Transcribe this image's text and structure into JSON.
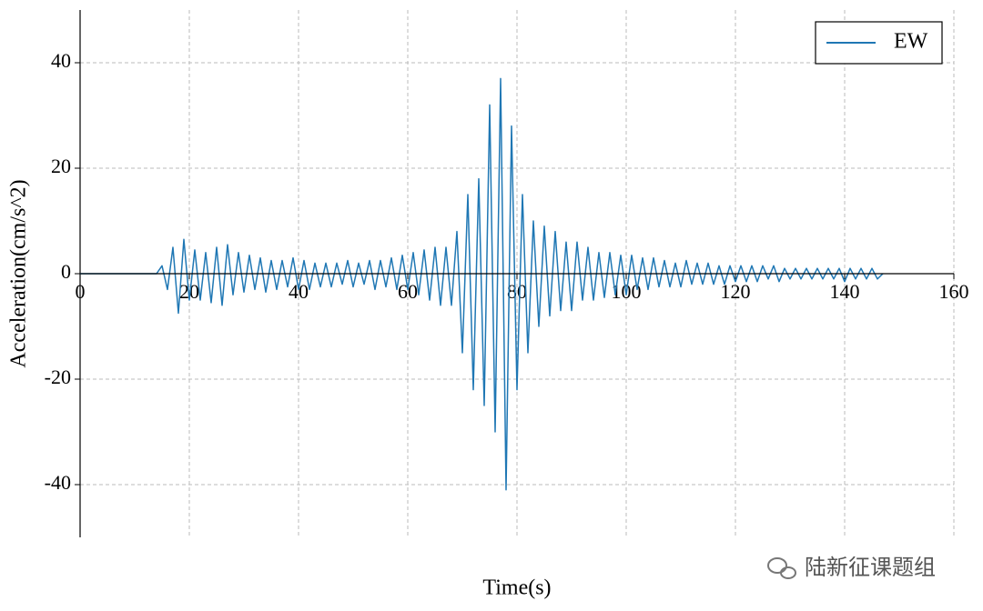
{
  "chart_data": {
    "type": "line",
    "x_label": "Time(s)",
    "y_label": "Acceleration(cm/s^2)",
    "watermark": "陆新征课题组",
    "legend": "upper right",
    "grid": true,
    "xlim": [
      0,
      160
    ],
    "xticks": [
      0,
      20,
      40,
      60,
      80,
      100,
      120,
      140,
      160
    ],
    "ylim": [
      -50,
      50
    ],
    "yticks": [
      -40,
      -20,
      0,
      20,
      40
    ],
    "x": [
      0,
      1,
      2,
      3,
      4,
      5,
      6,
      7,
      8,
      9,
      10,
      11,
      12,
      13,
      14,
      15,
      16,
      17,
      18,
      19,
      20,
      21,
      22,
      23,
      24,
      25,
      26,
      27,
      28,
      29,
      30,
      31,
      32,
      33,
      34,
      35,
      36,
      37,
      38,
      39,
      40,
      41,
      42,
      43,
      44,
      45,
      46,
      47,
      48,
      49,
      50,
      51,
      52,
      53,
      54,
      55,
      56,
      57,
      58,
      59,
      60,
      61,
      62,
      63,
      64,
      65,
      66,
      67,
      68,
      69,
      70,
      71,
      72,
      73,
      74,
      75,
      76,
      77,
      78,
      79,
      80,
      81,
      82,
      83,
      84,
      85,
      86,
      87,
      88,
      89,
      90,
      91,
      92,
      93,
      94,
      95,
      96,
      97,
      98,
      99,
      100,
      101,
      102,
      103,
      104,
      105,
      106,
      107,
      108,
      109,
      110,
      111,
      112,
      113,
      114,
      115,
      116,
      117,
      118,
      119,
      120,
      121,
      122,
      123,
      124,
      125,
      126,
      127,
      128,
      129,
      130,
      131,
      132,
      133,
      134,
      135,
      136,
      137,
      138,
      139,
      140,
      141,
      142,
      143,
      144,
      145,
      146,
      147
    ],
    "series": [
      {
        "name": "EW",
        "color": "#1f77b4",
        "values": [
          0,
          0,
          0,
          0,
          0,
          0,
          0,
          0,
          0,
          0,
          0,
          0,
          0,
          0,
          0,
          1.5,
          -3,
          5,
          -7.5,
          6.5,
          -5,
          4.5,
          -5,
          4,
          -5.5,
          5,
          -6,
          5.5,
          -4,
          4,
          -3.5,
          3.5,
          -3,
          3,
          -3.5,
          2.5,
          -3,
          2.5,
          -2.5,
          3,
          -3,
          2.5,
          -3,
          2,
          -2.5,
          2,
          -2.5,
          2,
          -2,
          2.5,
          -2.5,
          2,
          -2,
          2.5,
          -3,
          2.5,
          -2.5,
          3,
          -3,
          3.5,
          -3,
          4,
          -4,
          4.5,
          -5,
          5,
          -6,
          5,
          -6,
          8,
          -15,
          15,
          -22,
          18,
          -25,
          32,
          -30,
          37,
          -41,
          28,
          -22,
          15,
          -15,
          10,
          -10,
          9,
          -8,
          8,
          -7,
          6,
          -7,
          6,
          -5,
          5,
          -5,
          4,
          -4.5,
          4,
          -4,
          3.5,
          -4,
          3.5,
          -3,
          3,
          -3,
          3,
          -2.5,
          2.5,
          -2.5,
          2,
          -2.5,
          2.5,
          -2,
          2,
          -2,
          2,
          -2,
          1.5,
          -2,
          1.5,
          -1.5,
          1.5,
          -1.5,
          1.5,
          -1.5,
          1.5,
          -1,
          1.5,
          -1.5,
          1,
          -1,
          1,
          -1,
          1,
          -1,
          1,
          -1,
          1,
          -1,
          1,
          -1.5,
          1,
          -1,
          1,
          -1,
          1,
          -1,
          0
        ]
      }
    ]
  }
}
